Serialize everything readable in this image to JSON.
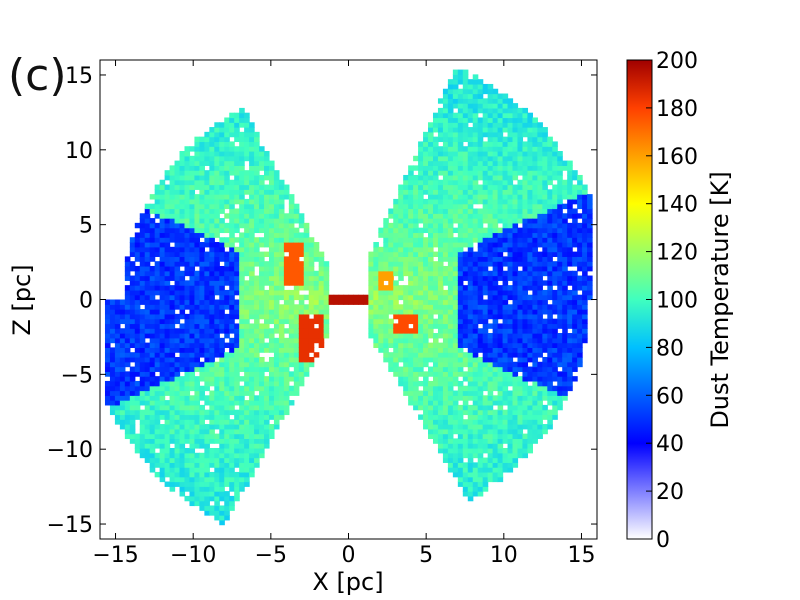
{
  "panel_label": "(c)",
  "chart_data": {
    "type": "heatmap",
    "xlabel": "X [pc]",
    "ylabel": "Z [pc]",
    "xlim": [
      -16,
      16
    ],
    "ylim": [
      -16,
      16
    ],
    "xticks": [
      -15,
      -10,
      -5,
      0,
      5,
      10,
      15
    ],
    "yticks": [
      -15,
      -10,
      -5,
      0,
      5,
      10,
      15
    ],
    "xtick_labels": [
      "−15",
      "−10",
      "−5",
      "0",
      "5",
      "10",
      "15"
    ],
    "ytick_labels": [
      "−15",
      "−10",
      "−5",
      "0",
      "5",
      "10",
      "15"
    ],
    "grid": false,
    "colorbar": {
      "label": "Dust Temperature [K]",
      "range": [
        0,
        200
      ],
      "ticks": [
        0,
        20,
        40,
        60,
        80,
        100,
        120,
        140,
        160,
        180,
        200
      ],
      "colormap": "jet with white at low end",
      "colors": [
        "#ffffff",
        "#7f7fff",
        "#0000ff",
        "#0060ff",
        "#00c0ff",
        "#40ffbf",
        "#9fff60",
        "#ffff00",
        "#ffa000",
        "#ff4000",
        "#a00000"
      ]
    },
    "regions": [
      {
        "name": "upper-left cone",
        "x_range": [
          -12,
          -3
        ],
        "z_range": [
          0,
          12.5
        ],
        "temperature_range": [
          60,
          130
        ]
      },
      {
        "name": "lower-left cone",
        "x_range": [
          -12,
          -3
        ],
        "z_range": [
          -14,
          0
        ],
        "temperature_range": [
          60,
          130
        ]
      },
      {
        "name": "upper-right cone",
        "x_range": [
          3,
          11
        ],
        "z_range": [
          0,
          15.5
        ],
        "temperature_range": [
          60,
          130
        ]
      },
      {
        "name": "lower-right cone",
        "x_range": [
          3,
          13
        ],
        "z_range": [
          -13,
          0
        ],
        "temperature_range": [
          60,
          140
        ]
      },
      {
        "name": "left outer cold wing",
        "x_range": [
          -15.5,
          -7
        ],
        "z_range": [
          -6,
          5
        ],
        "temperature_range": [
          30,
          60
        ]
      },
      {
        "name": "right outer cold wing",
        "x_range": [
          7,
          16
        ],
        "z_range": [
          -5,
          5
        ],
        "temperature_range": [
          30,
          60
        ]
      },
      {
        "name": "central hot disk",
        "x_range": [
          -1.2,
          1.5
        ],
        "z_range": [
          -0.2,
          0.2
        ],
        "temperature_range": [
          180,
          200
        ]
      },
      {
        "name": "hot wall upper-left",
        "x_range": [
          -4,
          -3
        ],
        "z_range": [
          1,
          4
        ],
        "temperature_range": [
          150,
          190
        ]
      },
      {
        "name": "hot wall lower-left",
        "x_range": [
          -3,
          -1.5
        ],
        "z_range": [
          -4,
          -1
        ],
        "temperature_range": [
          160,
          195
        ]
      },
      {
        "name": "hot wall lower-right",
        "x_range": [
          3,
          4.5
        ],
        "z_range": [
          -2,
          -1
        ],
        "temperature_range": [
          160,
          190
        ]
      },
      {
        "name": "hot wall upper-right",
        "x_range": [
          2,
          3
        ],
        "z_range": [
          0.5,
          2
        ],
        "temperature_range": [
          150,
          180
        ]
      }
    ]
  }
}
